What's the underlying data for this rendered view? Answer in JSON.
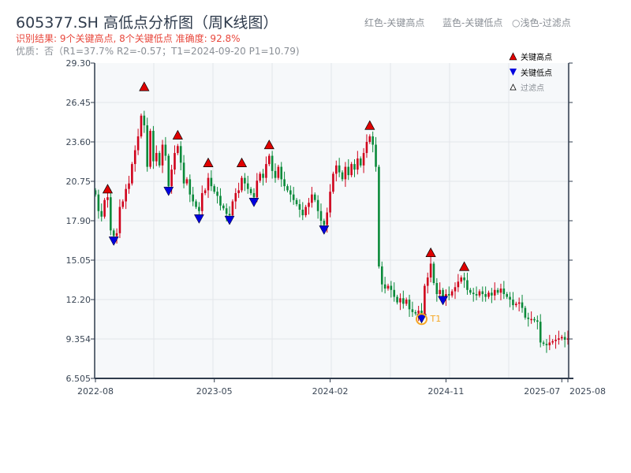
{
  "header": {
    "title": "605377.SH 高低点分析图（周K线图）",
    "result": "识别结果: 9个关键高点, 8个关键低点  准确度: 92.8%",
    "quality": "优质：否（R1=37.7%  R2=-0.57；T1=2024-09-20 P1=10.79)",
    "hint_high": "红色-关键高点",
    "hint_low": "蓝色-关键低点",
    "hint_filtered": "○浅色-过滤点"
  },
  "legend": {
    "high": "关键高点",
    "low": "关键低点",
    "filtered": "过滤点"
  },
  "colors": {
    "up": "#d0021b",
    "down": "#0a8a3a",
    "high": "#e00000",
    "low": "#0000e0",
    "t1": "#f5a623",
    "axis": "#2f3b4c",
    "grid": "#e3e6ea",
    "bg": "#f6f8fa"
  },
  "chart_data": {
    "type": "candlestick",
    "ylim": [
      6.505,
      29.3
    ],
    "yticks": [
      "6.505",
      "9.354",
      "12.20",
      "15.05",
      "17.90",
      "20.75",
      "23.60",
      "26.45",
      "29.30"
    ],
    "xticks": [
      {
        "label": "2022-08",
        "week": 0
      },
      {
        "label": "2023-05",
        "week": 39
      },
      {
        "label": "2024-02",
        "week": 77
      },
      {
        "label": "2024-11",
        "week": 115
      },
      {
        "label": "2025-07",
        "week": 153
      },
      {
        "label": "2025-08",
        "week": 155
      }
    ],
    "closes": [
      19.8,
      18.6,
      18.2,
      19.4,
      19.6,
      17.2,
      16.8,
      17.0,
      18.9,
      19.3,
      20.2,
      20.6,
      22.0,
      23.0,
      24.0,
      25.5,
      24.8,
      21.8,
      24.4,
      22.2,
      22.8,
      21.9,
      23.4,
      22.6,
      20.4,
      21.6,
      22.8,
      23.3,
      22.1,
      20.6,
      20.9,
      19.8,
      19.3,
      18.9,
      18.6,
      19.9,
      20.1,
      21.0,
      20.4,
      20.0,
      19.7,
      19.0,
      18.8,
      18.4,
      18.3,
      19.3,
      19.9,
      20.1,
      21.0,
      20.6,
      20.2,
      19.9,
      19.6,
      20.8,
      21.3,
      21.0,
      22.0,
      22.6,
      21.5,
      21.0,
      21.8,
      20.9,
      20.4,
      20.1,
      19.8,
      19.4,
      19.1,
      18.7,
      18.3,
      18.9,
      19.2,
      19.8,
      19.4,
      18.6,
      17.9,
      17.6,
      18.5,
      20.0,
      21.3,
      21.9,
      21.4,
      20.9,
      21.8,
      21.2,
      22.0,
      21.6,
      22.4,
      21.9,
      22.8,
      23.6,
      24.0,
      23.4,
      21.8,
      14.6,
      13.3,
      13.0,
      13.2,
      12.9,
      12.4,
      12.0,
      12.3,
      11.9,
      12.2,
      11.5,
      11.3,
      11.2,
      11.4,
      11.1,
      13.2,
      13.8,
      14.8,
      13.4,
      12.6,
      12.9,
      12.3,
      12.6,
      12.5,
      12.8,
      13.1,
      13.5,
      13.8,
      13.6,
      12.9,
      12.7,
      12.6,
      12.5,
      12.8,
      12.6,
      12.4,
      12.7,
      12.5,
      12.9,
      12.7,
      13.0,
      12.6,
      12.4,
      12.2,
      11.8,
      11.9,
      12.0,
      11.6,
      10.9,
      10.8,
      10.8,
      10.7,
      10.6,
      9.1,
      9.0,
      8.9,
      9.1,
      9.2,
      9.3,
      9.4,
      9.5,
      9.3,
      9.4
    ],
    "key_highs": [
      {
        "week": 4,
        "price": 19.9
      },
      {
        "week": 16,
        "price": 27.3
      },
      {
        "week": 27,
        "price": 23.8
      },
      {
        "week": 37,
        "price": 21.8
      },
      {
        "week": 48,
        "price": 21.8
      },
      {
        "week": 57,
        "price": 23.1
      },
      {
        "week": 90,
        "price": 24.5
      },
      {
        "week": 110,
        "price": 15.3
      },
      {
        "week": 121,
        "price": 14.3
      }
    ],
    "key_lows": [
      {
        "week": 6,
        "price": 16.4
      },
      {
        "week": 24,
        "price": 20.0
      },
      {
        "week": 34,
        "price": 18.0
      },
      {
        "week": 44,
        "price": 17.9
      },
      {
        "week": 52,
        "price": 19.2
      },
      {
        "week": 75,
        "price": 17.2
      },
      {
        "week": 107,
        "price": 10.79
      },
      {
        "week": 114,
        "price": 12.1
      }
    ],
    "t1": {
      "week": 107,
      "price": 10.79,
      "label": "T1"
    }
  }
}
